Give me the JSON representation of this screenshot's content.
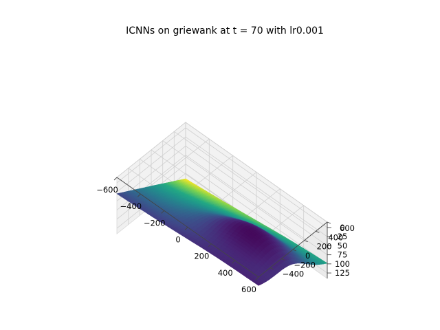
{
  "chart_data": {
    "type": "surface",
    "title": "ICNNs on griewank at t = 70 with lr0.001",
    "xlabel": "",
    "ylabel": "",
    "zlabel": "",
    "xlim": [
      -600,
      600
    ],
    "ylim": [
      -600,
      600
    ],
    "zlim": [
      -15,
      140
    ],
    "x_ticks": [
      -600,
      -400,
      -200,
      0,
      200,
      400,
      600
    ],
    "y_ticks": [
      -400,
      -200,
      0,
      200,
      400,
      600
    ],
    "z_ticks": [
      0,
      25,
      50,
      75,
      100,
      125
    ],
    "x_tick_labels": [
      "−600",
      "−400",
      "−200",
      "0",
      "200",
      "400",
      "600"
    ],
    "y_tick_labels": [
      "−400",
      "−200",
      "0",
      "200",
      "400",
      "600"
    ],
    "z_tick_labels": [
      "0",
      "25",
      "50",
      "75",
      "100",
      "125"
    ],
    "colormap": "viridis",
    "grid": true,
    "corner_values": [
      {
        "x": -600,
        "y": 600,
        "z": 140
      },
      {
        "x": 600,
        "y": 600,
        "z": 100
      },
      {
        "x": -600,
        "y": -600,
        "z": 30
      },
      {
        "x": 600,
        "y": -600,
        "z": 10
      }
    ],
    "minimum": {
      "x": 300,
      "y": -100,
      "z": -10
    }
  }
}
